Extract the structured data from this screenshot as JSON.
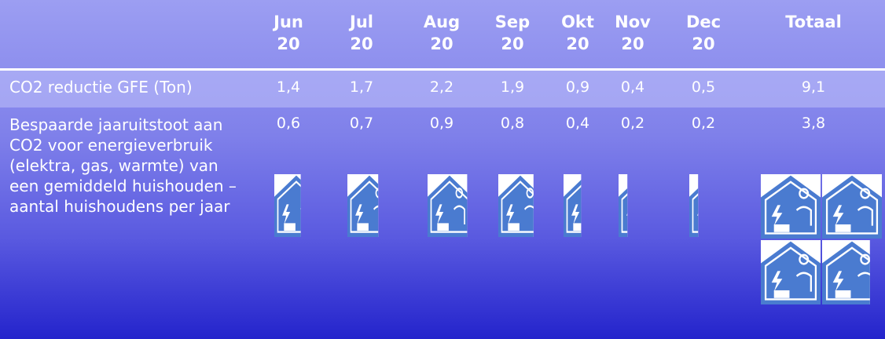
{
  "columns": [
    "Jun 20",
    "Jul 20",
    "Aug 20",
    "Sep 20",
    "Okt 20",
    "Nov 20",
    "Dec 20",
    "Totaal"
  ],
  "rows": [
    {
      "label": "CO2 reductie GFE (Ton)",
      "values": [
        "1,4",
        "1,7",
        "2,2",
        "1,9",
        "0,9",
        "0,4",
        "0,5",
        "9,1"
      ]
    },
    {
      "label": "Bespaarde jaaruitstoot aan CO2 voor energieverbruik (elektra, gas, warmte) van een gemiddeld huishouden – aantal huishoudens per jaar",
      "values": [
        "0,6",
        "0,7",
        "0,9",
        "0,8",
        "0,4",
        "0,2",
        "0,2",
        "3,8"
      ]
    }
  ]
}
